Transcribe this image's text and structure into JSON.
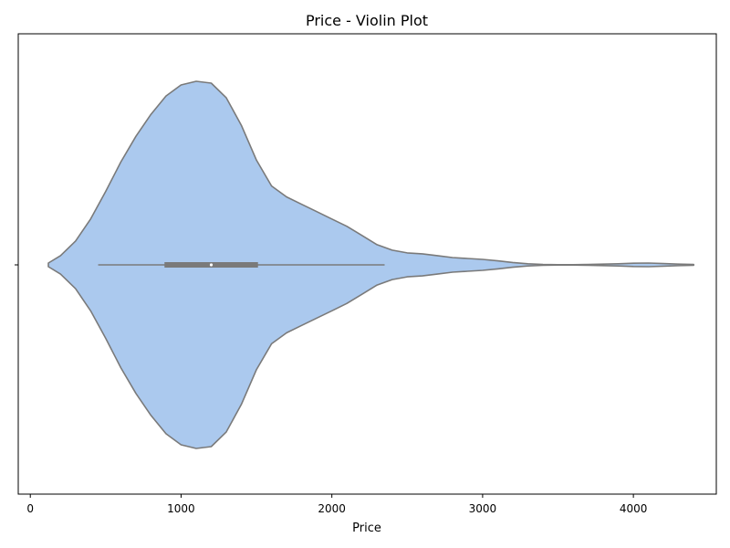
{
  "chart_data": {
    "type": "violin",
    "title": "Price - Violin Plot",
    "xlabel": "Price",
    "ylabel": "",
    "xlim": [
      -80,
      4550
    ],
    "xticks": [
      0,
      1000,
      2000,
      3000,
      4000
    ],
    "grid": false,
    "legend": "none",
    "colors": {
      "fill": "#abc9ee",
      "line": "#7a7a7a",
      "quartile_box": "#7a7a7a",
      "median_dot": "#ffffff"
    },
    "summary": {
      "min_whisker": 450,
      "q1": 890,
      "median": 1200,
      "q3": 1510,
      "max_whisker": 2350,
      "extent": [
        120,
        4400
      ]
    },
    "density": {
      "x": [
        120,
        200,
        300,
        400,
        500,
        600,
        700,
        800,
        900,
        1000,
        1100,
        1200,
        1300,
        1400,
        1500,
        1600,
        1700,
        1800,
        1900,
        2000,
        2100,
        2200,
        2300,
        2400,
        2500,
        2600,
        2700,
        2800,
        2900,
        3000,
        3100,
        3200,
        3300,
        3400,
        3500,
        3600,
        3700,
        3800,
        3900,
        4000,
        4100,
        4200,
        4300,
        4400
      ],
      "y": [
        0.01,
        0.05,
        0.13,
        0.25,
        0.4,
        0.56,
        0.7,
        0.82,
        0.92,
        0.98,
        1.0,
        0.99,
        0.91,
        0.76,
        0.57,
        0.43,
        0.37,
        0.33,
        0.29,
        0.25,
        0.21,
        0.16,
        0.11,
        0.08,
        0.065,
        0.06,
        0.05,
        0.04,
        0.035,
        0.03,
        0.022,
        0.013,
        0.006,
        0.002,
        0.001,
        0.001,
        0.002,
        0.004,
        0.006,
        0.009,
        0.01,
        0.007,
        0.004,
        0.002
      ]
    }
  }
}
